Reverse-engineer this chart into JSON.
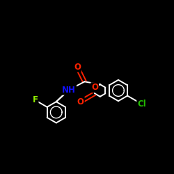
{
  "background": "#000000",
  "bond_color": "#ffffff",
  "atom_colors": {
    "O": "#ff2200",
    "N": "#1111ff",
    "F": "#90ee00",
    "Cl": "#22bb00",
    "C": "#ffffff"
  },
  "bond_lw": 1.4,
  "font_size": 8.5
}
